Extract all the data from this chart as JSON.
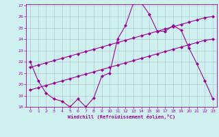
{
  "xlabel": "Windchill (Refroidissement éolien,°C)",
  "background_color": "#cff0f0",
  "line_color": "#990099",
  "grid_color": "#b0c8c8",
  "x_data": [
    0,
    1,
    2,
    3,
    4,
    5,
    6,
    7,
    8,
    9,
    10,
    11,
    12,
    13,
    14,
    15,
    16,
    17,
    18,
    19,
    20,
    21,
    22,
    23
  ],
  "y_main": [
    22,
    20.3,
    19.2,
    18.7,
    18.5,
    18.0,
    18.7,
    18.0,
    18.8,
    20.7,
    21.0,
    24.0,
    25.2,
    27.2,
    27.2,
    26.2,
    24.7,
    24.7,
    25.2,
    24.8,
    23.2,
    21.8,
    20.3,
    18.7
  ],
  "y_line1": [
    21.5,
    21.7,
    21.9,
    22.1,
    22.3,
    22.5,
    22.7,
    22.9,
    23.1,
    23.3,
    23.5,
    23.7,
    23.9,
    24.1,
    24.3,
    24.5,
    24.7,
    24.9,
    25.1,
    25.3,
    25.5,
    25.7,
    25.9,
    26.0
  ],
  "y_line2": [
    19.5,
    19.7,
    19.9,
    20.1,
    20.3,
    20.5,
    20.7,
    20.9,
    21.1,
    21.3,
    21.5,
    21.7,
    21.9,
    22.1,
    22.3,
    22.5,
    22.7,
    22.9,
    23.1,
    23.3,
    23.5,
    23.7,
    23.9,
    24.0
  ],
  "ylim": [
    18,
    27
  ],
  "xlim": [
    -0.5,
    23.5
  ],
  "yticks": [
    18,
    19,
    20,
    21,
    22,
    23,
    24,
    25,
    26,
    27
  ],
  "xticks": [
    0,
    1,
    2,
    3,
    4,
    5,
    6,
    7,
    8,
    9,
    10,
    11,
    12,
    13,
    14,
    15,
    16,
    17,
    18,
    19,
    20,
    21,
    22,
    23
  ],
  "marker": "D",
  "markersize": 2,
  "linewidth": 0.8
}
